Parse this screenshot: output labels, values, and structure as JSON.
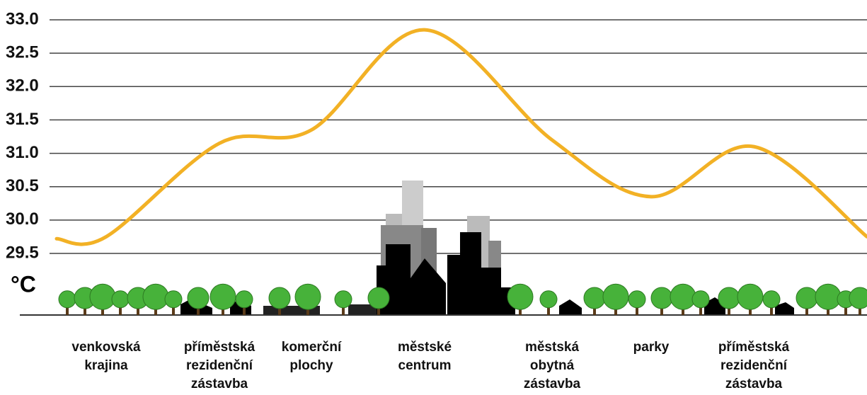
{
  "chart_data": {
    "type": "line",
    "y_unit": "°C",
    "categories": [
      null,
      "venkovská\nkrajina",
      "příměstská\nrezidenční\nzástavba",
      "komerční\nplochy",
      "městské\ncentrum",
      "městská\nobytná\nzástavba",
      "parky",
      "příměstská\nrezidenční\nzástavba",
      null
    ],
    "values": [
      29.72,
      29.75,
      31.15,
      31.35,
      32.85,
      31.2,
      30.35,
      31.1,
      29.75
    ],
    "color": "#f2b125",
    "ylim": [
      29.5,
      33.0
    ],
    "yticks": [
      {
        "value": 29.5,
        "label": "29.5"
      },
      {
        "value": 30.0,
        "label": "30.0"
      },
      {
        "value": 30.5,
        "label": "30.5"
      },
      {
        "value": 31.0,
        "label": "31.0"
      },
      {
        "value": 31.5,
        "label": "31.5"
      },
      {
        "value": 32.0,
        "label": "32.0"
      },
      {
        "value": 32.5,
        "label": "32.5"
      },
      {
        "value": 33.0,
        "label": "33.0"
      }
    ],
    "grid": true
  }
}
